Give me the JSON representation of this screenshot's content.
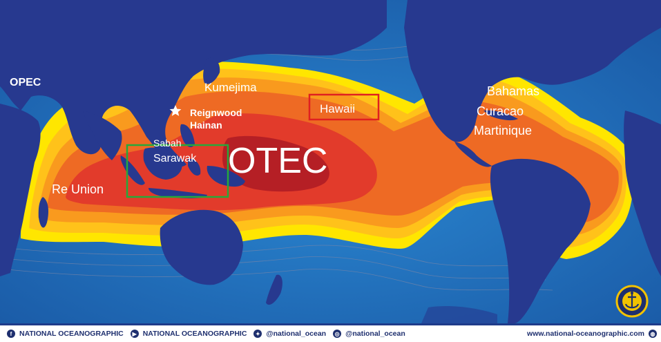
{
  "map": {
    "title": "OTEC",
    "labels": {
      "opec": "OPEC",
      "kumejima": "Kumejima",
      "hawaii": "Hawaii",
      "reignwood": "Reignwood",
      "hainan": "Hainan",
      "sabah": "Sabah",
      "sarawak": "Sarawak",
      "re_union": "Re Union",
      "bahamas": "Bahamas",
      "curacao": "Curacao",
      "martinique": "Martinique"
    },
    "highlight_colors": {
      "hawaii_box": "#e02020",
      "sabah_sarawak_box": "#27a83a"
    },
    "colors": {
      "ocean": "#1f6bb8",
      "land": "#27398f",
      "yellow": "#ffe600",
      "light_orange": "#ffc21a",
      "orange": "#f99a1e",
      "dark_orange": "#ee6a24",
      "red": "#e23b2b",
      "dark_red": "#b51f25"
    },
    "star_icon": "star-icon",
    "logo_icon": "anchor-logo-icon"
  },
  "footer": {
    "facebook": "NATIONAL OCEANOGRAPHIC",
    "youtube": "NATIONAL OCEANOGRAPHIC",
    "twitter": "@national_ocean",
    "instagram": "@national_ocean",
    "website": "www.national-oceanographic.com"
  }
}
